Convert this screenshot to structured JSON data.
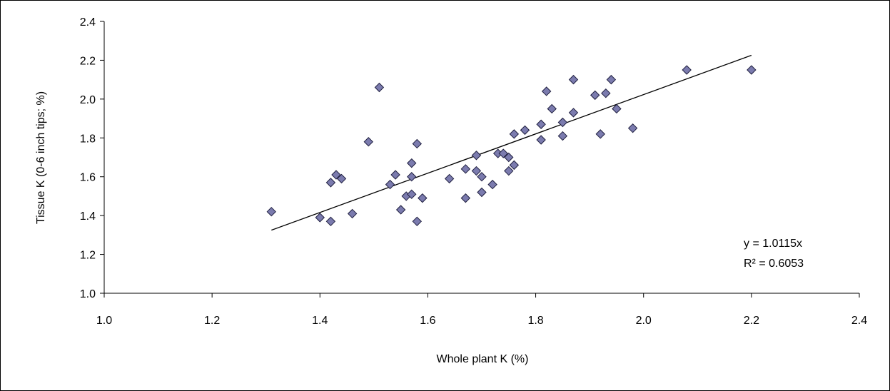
{
  "chart_data": {
    "type": "scatter",
    "xlabel": "Whole plant K (%)",
    "ylabel": "Tissue K (0-6 inch tips; %)",
    "xlim": [
      1.0,
      2.4
    ],
    "ylim": [
      1.0,
      2.4
    ],
    "x_ticks": [
      "1.0",
      "1.2",
      "1.4",
      "1.6",
      "1.8",
      "2.0",
      "2.2",
      "2.4"
    ],
    "y_ticks": [
      "1.0",
      "1.2",
      "1.4",
      "1.6",
      "1.8",
      "2.0",
      "2.2",
      "2.4"
    ],
    "grid": false,
    "marker": "diamond",
    "marker_color": "#7B7BAE",
    "marker_edge_color": "#1F1F3F",
    "points": [
      {
        "x": 1.31,
        "y": 1.42
      },
      {
        "x": 1.4,
        "y": 1.39
      },
      {
        "x": 1.42,
        "y": 1.37
      },
      {
        "x": 1.42,
        "y": 1.57
      },
      {
        "x": 1.43,
        "y": 1.61
      },
      {
        "x": 1.44,
        "y": 1.59
      },
      {
        "x": 1.46,
        "y": 1.41
      },
      {
        "x": 1.49,
        "y": 1.78
      },
      {
        "x": 1.51,
        "y": 2.06
      },
      {
        "x": 1.53,
        "y": 1.56
      },
      {
        "x": 1.54,
        "y": 1.61
      },
      {
        "x": 1.55,
        "y": 1.43
      },
      {
        "x": 1.56,
        "y": 1.5
      },
      {
        "x": 1.57,
        "y": 1.51
      },
      {
        "x": 1.57,
        "y": 1.6
      },
      {
        "x": 1.57,
        "y": 1.67
      },
      {
        "x": 1.58,
        "y": 1.77
      },
      {
        "x": 1.58,
        "y": 1.37
      },
      {
        "x": 1.59,
        "y": 1.49
      },
      {
        "x": 1.64,
        "y": 1.59
      },
      {
        "x": 1.67,
        "y": 1.64
      },
      {
        "x": 1.67,
        "y": 1.49
      },
      {
        "x": 1.69,
        "y": 1.71
      },
      {
        "x": 1.69,
        "y": 1.63
      },
      {
        "x": 1.7,
        "y": 1.6
      },
      {
        "x": 1.7,
        "y": 1.52
      },
      {
        "x": 1.72,
        "y": 1.56
      },
      {
        "x": 1.73,
        "y": 1.72
      },
      {
        "x": 1.74,
        "y": 1.72
      },
      {
        "x": 1.75,
        "y": 1.7
      },
      {
        "x": 1.75,
        "y": 1.63
      },
      {
        "x": 1.76,
        "y": 1.66
      },
      {
        "x": 1.76,
        "y": 1.82
      },
      {
        "x": 1.78,
        "y": 1.84
      },
      {
        "x": 1.81,
        "y": 1.87
      },
      {
        "x": 1.81,
        "y": 1.79
      },
      {
        "x": 1.82,
        "y": 2.04
      },
      {
        "x": 1.83,
        "y": 1.95
      },
      {
        "x": 1.85,
        "y": 1.88
      },
      {
        "x": 1.85,
        "y": 1.81
      },
      {
        "x": 1.87,
        "y": 2.1
      },
      {
        "x": 1.87,
        "y": 1.93
      },
      {
        "x": 1.91,
        "y": 2.02
      },
      {
        "x": 1.92,
        "y": 1.82
      },
      {
        "x": 1.93,
        "y": 2.03
      },
      {
        "x": 1.94,
        "y": 2.1
      },
      {
        "x": 1.95,
        "y": 1.95
      },
      {
        "x": 1.98,
        "y": 1.85
      },
      {
        "x": 2.08,
        "y": 2.15
      },
      {
        "x": 2.2,
        "y": 2.15
      }
    ],
    "trendline": {
      "slope": 1.0115,
      "intercept": 0,
      "x_range": [
        1.31,
        2.2
      ],
      "color": "#000000"
    },
    "annotations": [
      "y = 1.0115x",
      "R² = 0.6053"
    ]
  }
}
